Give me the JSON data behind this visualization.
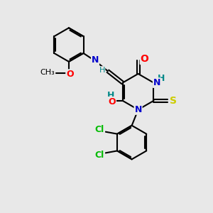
{
  "background_color": "#e8e8e8",
  "bond_color": "#000000",
  "bond_width": 1.5,
  "atom_colors": {
    "C": "#000000",
    "N": "#0000cc",
    "O": "#ff0000",
    "S": "#cccc00",
    "Cl": "#00bb00",
    "H": "#008888"
  },
  "font_size": 9,
  "xlim": [
    0,
    10
  ],
  "ylim": [
    0,
    10
  ]
}
